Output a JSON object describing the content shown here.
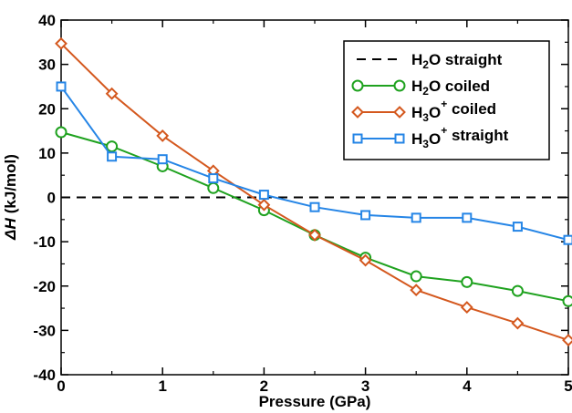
{
  "chart_data": {
    "type": "line",
    "title": "",
    "xlabel": "Pressure (GPa)",
    "ylabel_prefix": "ΔH",
    "ylabel_suffix": "(kJ/mol)",
    "xlim": [
      0,
      5
    ],
    "ylim": [
      -40,
      40
    ],
    "xticks": [
      0,
      1,
      2,
      3,
      4,
      5
    ],
    "yticks": [
      -40,
      -30,
      -20,
      -10,
      0,
      10,
      20,
      30,
      40
    ],
    "grid": false,
    "legend_position": "top-right",
    "x": [
      0,
      0.5,
      1,
      1.5,
      2,
      2.5,
      3,
      3.5,
      4,
      4.5,
      5
    ],
    "series": [
      {
        "id": "h2o-straight",
        "name": "H2O straight",
        "name_parts": [
          [
            "H",
            "normal"
          ],
          [
            "2",
            "sub"
          ],
          [
            "O straight",
            "normal"
          ]
        ],
        "color": "#000000",
        "dash": true,
        "marker": "none",
        "values": [
          0,
          0,
          0,
          0,
          0,
          0,
          0,
          0,
          0,
          0,
          0
        ]
      },
      {
        "id": "h2o-coiled",
        "name": "H2O coiled",
        "name_parts": [
          [
            "H",
            "normal"
          ],
          [
            "2",
            "sub"
          ],
          [
            "O coiled",
            "normal"
          ]
        ],
        "color": "#1fa21f",
        "dash": false,
        "marker": "circle",
        "values": [
          14.7,
          11.5,
          7.0,
          2.1,
          -2.9,
          -8.5,
          -13.6,
          -17.8,
          -19.1,
          -21.1,
          -23.4
        ]
      },
      {
        "id": "h3o-coiled",
        "name": "H3O+ coiled",
        "name_parts": [
          [
            "H",
            "normal"
          ],
          [
            "3",
            "sub"
          ],
          [
            "O",
            "normal"
          ],
          [
            "+",
            "sup"
          ],
          [
            " coiled",
            "normal"
          ]
        ],
        "color": "#d4581e",
        "dash": false,
        "marker": "diamond",
        "values": [
          34.7,
          23.4,
          13.9,
          6.0,
          -1.7,
          -8.5,
          -14.2,
          -20.9,
          -24.8,
          -28.4,
          -32.2
        ]
      },
      {
        "id": "h3o-straight",
        "name": "H3O+ straight",
        "name_parts": [
          [
            "H",
            "normal"
          ],
          [
            "3",
            "sub"
          ],
          [
            "O",
            "normal"
          ],
          [
            "+",
            "sup"
          ],
          [
            " straight",
            "normal"
          ]
        ],
        "color": "#2585e6",
        "dash": false,
        "marker": "square",
        "values": [
          25.0,
          9.2,
          8.6,
          4.3,
          0.6,
          -2.2,
          -4.0,
          -4.6,
          -4.6,
          -6.6,
          -9.6
        ]
      }
    ]
  }
}
